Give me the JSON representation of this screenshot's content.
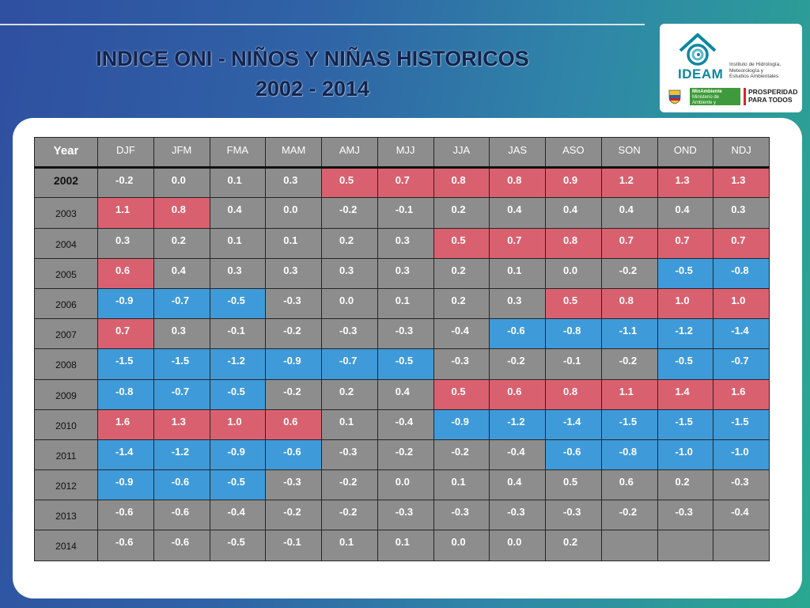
{
  "title": {
    "line1": "INDICE ONI - NIÑOS Y NIÑAS HISTORICOS",
    "line2": "2002 - 2014"
  },
  "logo": {
    "brand": "IDEAM",
    "subtitle_lines": [
      "Instituto de Hidrología,",
      "Meteorología y",
      "Estudios Ambientales"
    ],
    "ministry": "MinAmbiente",
    "ministry_sub": "Ministerio de Ambiente y Desarrollo Sostenible",
    "slogan_line1": "PROSPERIDAD",
    "slogan_line2": "PARA TODOS",
    "colors": {
      "brand": "#0c87a3",
      "ministry": "#3e9a3a",
      "slogan_accent": "#d9232d"
    }
  },
  "chart_data": {
    "type": "table",
    "colors": {
      "warm": "#d9616f",
      "cold": "#3f9ad9",
      "neutral": "#8d8d8d"
    },
    "columns": [
      "Year",
      "DJF",
      "JFM",
      "FMA",
      "MAM",
      "AMJ",
      "MJJ",
      "JJA",
      "JAS",
      "ASO",
      "SON",
      "OND",
      "NDJ"
    ],
    "rows": [
      {
        "year": "2002",
        "values": [
          "-0.2",
          "0.0",
          "0.1",
          "0.3",
          "0.5",
          "0.7",
          "0.8",
          "0.8",
          "0.9",
          "1.2",
          "1.3",
          "1.3"
        ],
        "phase": [
          "n",
          "n",
          "n",
          "n",
          "w",
          "w",
          "w",
          "w",
          "w",
          "w",
          "w",
          "w"
        ]
      },
      {
        "year": "2003",
        "values": [
          "1.1",
          "0.8",
          "0.4",
          "0.0",
          "-0.2",
          "-0.1",
          "0.2",
          "0.4",
          "0.4",
          "0.4",
          "0.4",
          "0.3"
        ],
        "phase": [
          "w",
          "w",
          "n",
          "n",
          "n",
          "n",
          "n",
          "n",
          "n",
          "n",
          "n",
          "n"
        ]
      },
      {
        "year": "2004",
        "values": [
          "0.3",
          "0.2",
          "0.1",
          "0.1",
          "0.2",
          "0.3",
          "0.5",
          "0.7",
          "0.8",
          "0.7",
          "0.7",
          "0.7"
        ],
        "phase": [
          "n",
          "n",
          "n",
          "n",
          "n",
          "n",
          "w",
          "w",
          "w",
          "w",
          "w",
          "w"
        ]
      },
      {
        "year": "2005",
        "values": [
          "0.6",
          "0.4",
          "0.3",
          "0.3",
          "0.3",
          "0.3",
          "0.2",
          "0.1",
          "0.0",
          "-0.2",
          "-0.5",
          "-0.8"
        ],
        "phase": [
          "w",
          "n",
          "n",
          "n",
          "n",
          "n",
          "n",
          "n",
          "n",
          "n",
          "c",
          "c"
        ]
      },
      {
        "year": "2006",
        "values": [
          "-0.9",
          "-0.7",
          "-0.5",
          "-0.3",
          "0.0",
          "0.1",
          "0.2",
          "0.3",
          "0.5",
          "0.8",
          "1.0",
          "1.0"
        ],
        "phase": [
          "c",
          "c",
          "c",
          "n",
          "n",
          "n",
          "n",
          "n",
          "w",
          "w",
          "w",
          "w"
        ]
      },
      {
        "year": "2007",
        "values": [
          "0.7",
          "0.3",
          "-0.1",
          "-0.2",
          "-0.3",
          "-0.3",
          "-0.4",
          "-0.6",
          "-0.8",
          "-1.1",
          "-1.2",
          "-1.4"
        ],
        "phase": [
          "w",
          "n",
          "n",
          "n",
          "n",
          "n",
          "n",
          "c",
          "c",
          "c",
          "c",
          "c"
        ]
      },
      {
        "year": "2008",
        "values": [
          "-1.5",
          "-1.5",
          "-1.2",
          "-0.9",
          "-0.7",
          "-0.5",
          "-0.3",
          "-0.2",
          "-0.1",
          "-0.2",
          "-0.5",
          "-0.7"
        ],
        "phase": [
          "c",
          "c",
          "c",
          "c",
          "c",
          "c",
          "n",
          "n",
          "n",
          "n",
          "c",
          "c"
        ]
      },
      {
        "year": "2009",
        "values": [
          "-0.8",
          "-0.7",
          "-0.5",
          "-0.2",
          "0.2",
          "0.4",
          "0.5",
          "0.6",
          "0.8",
          "1.1",
          "1.4",
          "1.6"
        ],
        "phase": [
          "c",
          "c",
          "c",
          "n",
          "n",
          "n",
          "w",
          "w",
          "w",
          "w",
          "w",
          "w"
        ]
      },
      {
        "year": "2010",
        "values": [
          "1.6",
          "1.3",
          "1.0",
          "0.6",
          "0.1",
          "-0.4",
          "-0.9",
          "-1.2",
          "-1.4",
          "-1.5",
          "-1.5",
          "-1.5"
        ],
        "phase": [
          "w",
          "w",
          "w",
          "w",
          "n",
          "n",
          "c",
          "c",
          "c",
          "c",
          "c",
          "c"
        ]
      },
      {
        "year": "2011",
        "values": [
          "-1.4",
          "-1.2",
          "-0.9",
          "-0.6",
          "-0.3",
          "-0.2",
          "-0.2",
          "-0.4",
          "-0.6",
          "-0.8",
          "-1.0",
          "-1.0"
        ],
        "phase": [
          "c",
          "c",
          "c",
          "c",
          "n",
          "n",
          "n",
          "n",
          "c",
          "c",
          "c",
          "c"
        ]
      },
      {
        "year": "2012",
        "values": [
          "-0.9",
          "-0.6",
          "-0.5",
          "-0.3",
          "-0.2",
          "0.0",
          "0.1",
          "0.4",
          "0.5",
          "0.6",
          "0.2",
          "-0.3"
        ],
        "phase": [
          "c",
          "c",
          "c",
          "n",
          "n",
          "n",
          "n",
          "n",
          "n",
          "n",
          "n",
          "n"
        ]
      },
      {
        "year": "2013",
        "values": [
          "-0.6",
          "-0.6",
          "-0.4",
          "-0.2",
          "-0.2",
          "-0.3",
          "-0.3",
          "-0.3",
          "-0.3",
          "-0.2",
          "-0.3",
          "-0.4"
        ],
        "phase": [
          "n",
          "n",
          "n",
          "n",
          "n",
          "n",
          "n",
          "n",
          "n",
          "n",
          "n",
          "n"
        ]
      },
      {
        "year": "2014",
        "values": [
          "-0.6",
          "-0.6",
          "-0.5",
          "-0.1",
          "0.1",
          "0.1",
          "0.0",
          "0.0",
          "0.2",
          "",
          "",
          ""
        ],
        "phase": [
          "n",
          "n",
          "n",
          "n",
          "n",
          "n",
          "n",
          "n",
          "n",
          "n",
          "n",
          "n"
        ]
      }
    ]
  }
}
